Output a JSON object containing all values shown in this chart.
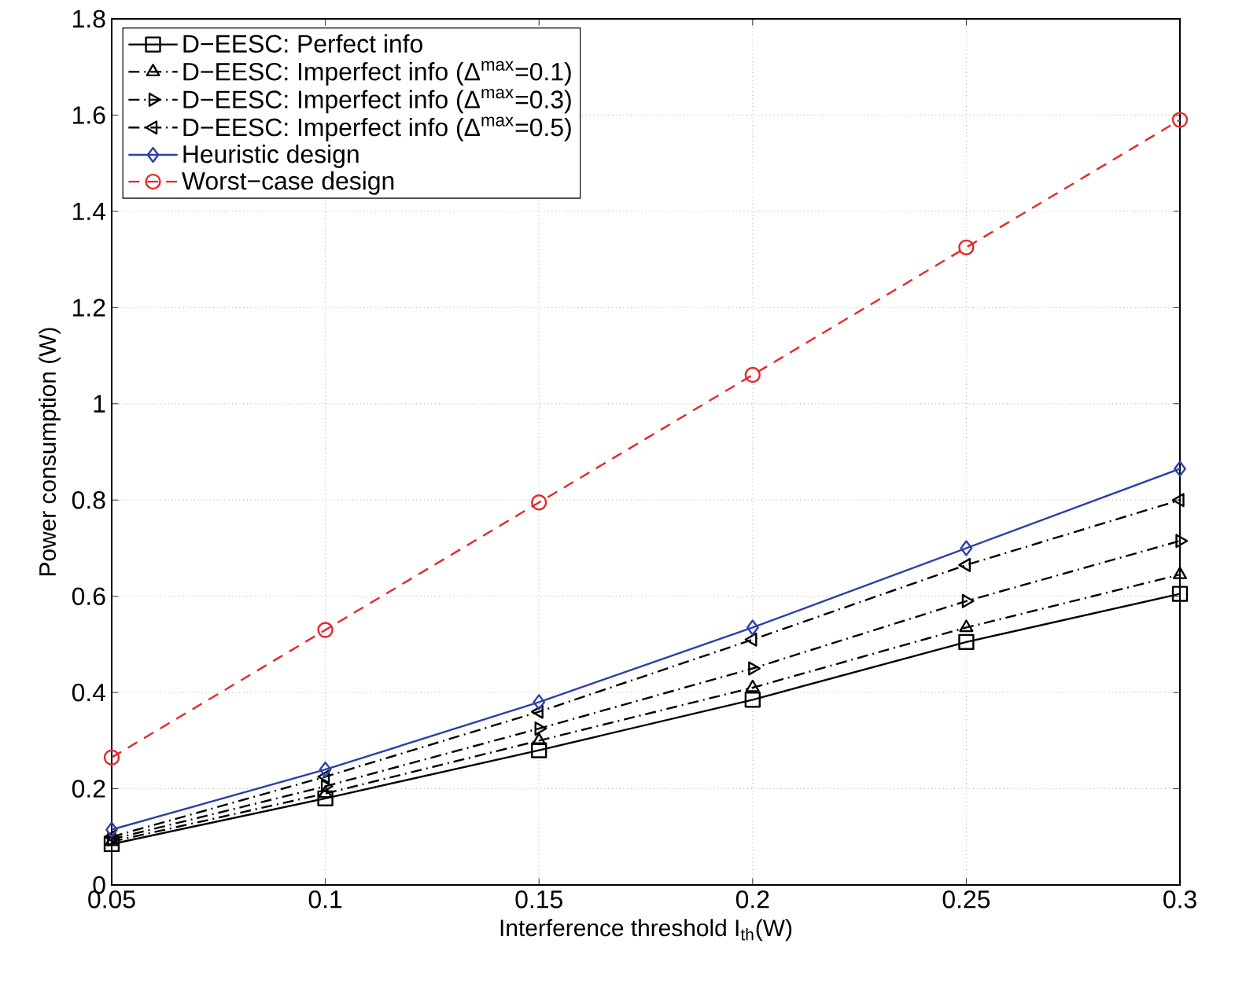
{
  "chart_data": {
    "type": "line",
    "xlabel": "Interference threshold I$_{th}$(W)",
    "ylabel": "Power consumption (W)",
    "x": [
      0.05,
      0.1,
      0.15,
      0.2,
      0.25,
      0.3
    ],
    "series": [
      {
        "name": "D−EESC: Perfect info",
        "color": "#000000",
        "marker": "square",
        "line_style": "solid",
        "values": [
          0.085,
          0.18,
          0.28,
          0.385,
          0.505,
          0.605
        ]
      },
      {
        "name": "D−EESC: Imperfect info (Δ$^{max}$=0.1)",
        "color": "#000000",
        "marker": "triangle",
        "line_style": "dashdot",
        "values": [
          0.09,
          0.19,
          0.3,
          0.41,
          0.535,
          0.645
        ]
      },
      {
        "name": "D−EESC: Imperfect info (Δ$^{max}$=0.3)",
        "color": "#000000",
        "marker": "triangle-right",
        "line_style": "dashdot",
        "values": [
          0.095,
          0.205,
          0.325,
          0.45,
          0.59,
          0.715
        ]
      },
      {
        "name": "D−EESC: Imperfect info (Δ$^{max}$=0.5)",
        "color": "#000000",
        "marker": "triangle-left",
        "line_style": "dashdot",
        "values": [
          0.1,
          0.225,
          0.36,
          0.51,
          0.665,
          0.8
        ]
      },
      {
        "name": "Heuristic design",
        "color": "#2b3fa8",
        "marker": "diamond",
        "line_style": "solid",
        "values": [
          0.115,
          0.24,
          0.38,
          0.535,
          0.7,
          0.865
        ]
      },
      {
        "name": "Worst−case design",
        "color": "#e8262a",
        "marker": "circle",
        "line_style": "dashed",
        "values": [
          0.265,
          0.53,
          0.795,
          1.06,
          1.325,
          1.59
        ]
      }
    ],
    "xlim": [
      0.05,
      0.3
    ],
    "xticks": [
      0.05,
      0.1,
      0.15,
      0.2,
      0.25,
      0.3
    ],
    "ylim": [
      0,
      1.8
    ],
    "yticks": [
      0,
      0.2,
      0.4,
      0.6,
      0.8,
      1,
      1.2,
      1.4,
      1.6,
      1.8
    ],
    "grid": true,
    "legend": "top left"
  }
}
